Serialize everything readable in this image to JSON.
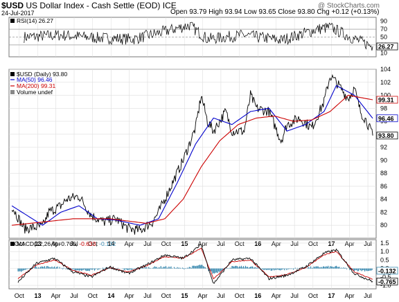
{
  "header": {
    "symbol": "$USD",
    "name": "US Dollar Index - Cash Settle (EOD)",
    "exchange": "ICE",
    "date": "24-Jul-2017",
    "open_label": "Open",
    "open": "93.79",
    "high_label": "High",
    "high": "93.94",
    "low_label": "Low",
    "low": "93.65",
    "close_label": "Close",
    "close": "93.80",
    "chg_label": "Chg",
    "chg": "+0.12 (+0.13%)",
    "logo": "@ StockCharts.com"
  },
  "colors": {
    "price": "#000000",
    "ma50": "#0000cc",
    "ma200": "#cc0000",
    "macd": "#000000",
    "signal": "#cc0000",
    "histogram": "#3a8ab0",
    "rsi": "#000000",
    "grid": "#dddddd"
  },
  "chart_data": [
    {
      "type": "line",
      "panel": "RSI",
      "legend": "RSI(14) 26.27",
      "yticks": [
        "90",
        "70",
        "50",
        "30",
        "10"
      ],
      "ylim": [
        0,
        100
      ],
      "reference_lines": [
        70,
        50,
        30
      ],
      "last_value_label": "26.27",
      "series": [
        {
          "name": "RSI(14)",
          "x": [
            "2012-10",
            "2013-04",
            "2013-10",
            "2014-04",
            "2014-10",
            "2015-01",
            "2015-04",
            "2015-10",
            "2016-04",
            "2016-10",
            "2016-12",
            "2017-04",
            "2017-07"
          ],
          "values": [
            50,
            55,
            48,
            45,
            68,
            80,
            45,
            55,
            42,
            70,
            75,
            45,
            26.27
          ]
        }
      ]
    },
    {
      "type": "line",
      "panel": "price",
      "legend": [
        "$USD (Daily) 93.80",
        "MA(50) 96.46",
        "MA(200) 99.31",
        "Volume undef"
      ],
      "ylim": [
        78,
        104
      ],
      "yticks": [
        "104",
        "102",
        "100",
        "98",
        "96",
        "94",
        "92",
        "90",
        "88",
        "86",
        "84",
        "82",
        "80"
      ],
      "xticks": [
        "Oct",
        "13",
        "Apr",
        "Jul",
        "Oct",
        "14",
        "Apr",
        "Jul",
        "Oct",
        "15",
        "Apr",
        "Jul",
        "Oct",
        "16",
        "Apr",
        "Jul",
        "Oct",
        "17",
        "Apr",
        "Jul"
      ],
      "last_value_labels": {
        "ma200": "99.31",
        "ma50": "96.46",
        "price": "93.80"
      },
      "series": [
        {
          "name": "$USD (Daily)",
          "x": [
            "2012-08",
            "2012-10",
            "2013-01",
            "2013-02",
            "2013-04",
            "2013-05",
            "2013-07",
            "2013-09",
            "2013-11",
            "2014-01",
            "2014-03",
            "2014-05",
            "2014-07",
            "2014-08",
            "2014-10",
            "2014-12",
            "2015-02",
            "2015-03",
            "2015-04",
            "2015-05",
            "2015-07",
            "2015-08",
            "2015-10",
            "2015-11",
            "2015-12",
            "2016-02",
            "2016-04",
            "2016-05",
            "2016-07",
            "2016-09",
            "2016-11",
            "2016-12",
            "2017-01",
            "2017-03",
            "2017-04",
            "2017-05",
            "2017-06",
            "2017-07"
          ],
          "values": [
            83,
            79.5,
            79.8,
            82,
            83,
            84,
            84.5,
            81.5,
            80.5,
            81,
            79.5,
            79.2,
            80.5,
            82,
            86,
            90,
            95,
            100,
            96,
            94.5,
            97.5,
            94.5,
            94.5,
            100,
            98,
            97.5,
            93,
            95.5,
            96.5,
            95,
            99,
            103,
            102,
            99.5,
            101,
            97.5,
            96,
            93.8
          ]
        },
        {
          "name": "MA(50)",
          "x": [
            "2012-08",
            "2013-01",
            "2013-04",
            "2013-07",
            "2013-10",
            "2014-01",
            "2014-05",
            "2014-08",
            "2014-11",
            "2015-02",
            "2015-05",
            "2015-08",
            "2015-11",
            "2016-02",
            "2016-05",
            "2016-08",
            "2016-11",
            "2017-01",
            "2017-04",
            "2017-07"
          ],
          "values": [
            83,
            80,
            82,
            83,
            81,
            80.8,
            80,
            81,
            86.5,
            92.5,
            96.5,
            95.5,
            97.5,
            98,
            94.5,
            95.5,
            97.5,
            101.5,
            100,
            96.46
          ]
        },
        {
          "name": "MA(200)",
          "x": [
            "2012-08",
            "2013-01",
            "2013-06",
            "2013-12",
            "2014-06",
            "2014-09",
            "2014-12",
            "2015-03",
            "2015-06",
            "2015-09",
            "2015-12",
            "2016-03",
            "2016-06",
            "2016-09",
            "2016-12",
            "2017-03",
            "2017-07"
          ],
          "values": [
            80,
            80.5,
            81,
            81,
            80.3,
            81,
            84,
            89,
            93,
            95.5,
            96.5,
            96.8,
            96,
            96.2,
            97.5,
            100,
            99.31
          ]
        }
      ]
    },
    {
      "type": "line",
      "panel": "MACD",
      "legend": {
        "label": "MACD(12,26,9)",
        "macd": "-0.765",
        "signal": "-0.633",
        "histogram": "-0.132"
      },
      "yticks": [
        "1.5",
        "1.0",
        "0.5",
        "0.0",
        "-0.5",
        "-1.0"
      ],
      "ylim": [
        -1.2,
        1.7
      ],
      "last_value_labels": {
        "histogram": "-0.132",
        "macd": "-0.765"
      },
      "xticks": [
        "Oct",
        "13",
        "Apr",
        "Jul",
        "Oct",
        "14",
        "Apr",
        "Jul",
        "Oct",
        "15",
        "Apr",
        "Jul",
        "Oct",
        "16",
        "Apr",
        "Jul",
        "Oct",
        "17",
        "Apr",
        "Jul"
      ],
      "series": [
        {
          "name": "MACD",
          "x": [
            "2012-09",
            "2012-12",
            "2013-03",
            "2013-06",
            "2013-09",
            "2013-12",
            "2014-03",
            "2014-06",
            "2014-09",
            "2014-12",
            "2015-03",
            "2015-05",
            "2015-08",
            "2015-11",
            "2016-02",
            "2016-05",
            "2016-08",
            "2016-11",
            "2017-01",
            "2017-04",
            "2017-07"
          ],
          "values": [
            -0.8,
            0.3,
            0.6,
            -0.2,
            -0.5,
            0.1,
            -0.3,
            0.2,
            0.8,
            0.6,
            1.4,
            -0.9,
            0.5,
            0.6,
            -0.6,
            -0.4,
            0.1,
            0.9,
            1.1,
            -0.3,
            -0.765
          ]
        },
        {
          "name": "Signal",
          "x": [
            "2012-09",
            "2012-12",
            "2013-03",
            "2013-06",
            "2013-09",
            "2013-12",
            "2014-03",
            "2014-06",
            "2014-09",
            "2014-12",
            "2015-03",
            "2015-05",
            "2015-08",
            "2015-11",
            "2016-02",
            "2016-05",
            "2016-08",
            "2016-11",
            "2017-01",
            "2017-04",
            "2017-07"
          ],
          "values": [
            -0.6,
            0.2,
            0.5,
            -0.1,
            -0.4,
            0.05,
            -0.2,
            0.15,
            0.7,
            0.6,
            1.2,
            -0.6,
            0.4,
            0.5,
            -0.5,
            -0.35,
            0.05,
            0.8,
            1.0,
            -0.2,
            -0.633
          ]
        }
      ]
    }
  ]
}
